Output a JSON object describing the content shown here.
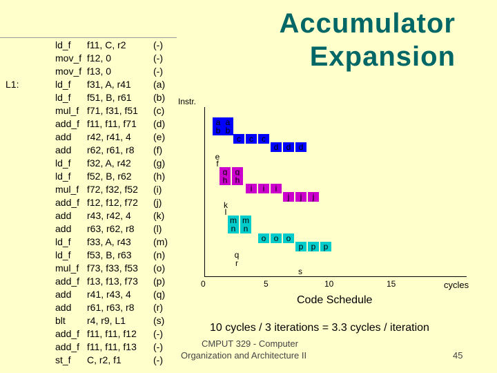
{
  "title": [
    "Accumulator",
    "Expansion"
  ],
  "loop_label": "L1:",
  "code": [
    {
      "op": "ld_f",
      "args": "f11, C, r2",
      "tag": "(-)"
    },
    {
      "op": "mov_f",
      "args": "f12, 0",
      "tag": "(-)"
    },
    {
      "op": "mov_f",
      "args": "f13, 0",
      "tag": "(-)"
    },
    {
      "op": "ld_f",
      "args": "f31, A, r41",
      "tag": "(a)"
    },
    {
      "op": "ld_f",
      "args": "f51, B, r61",
      "tag": "(b)"
    },
    {
      "op": "mul_f",
      "args": "f71, f31, f51",
      "tag": "(c)"
    },
    {
      "op": "add_f",
      "args": "f11, f11, f71",
      "tag": "(d)"
    },
    {
      "op": "add",
      "args": "r42, r41, 4",
      "tag": "(e)"
    },
    {
      "op": "add",
      "args": "r62, r61, r8",
      "tag": "(f)"
    },
    {
      "op": "ld_f",
      "args": "f32, A, r42",
      "tag": "(g)"
    },
    {
      "op": "ld_f",
      "args": "f52, B, r62",
      "tag": "(h)"
    },
    {
      "op": "mul_f",
      "args": "f72, f32, f52",
      "tag": "(i)"
    },
    {
      "op": "add_f",
      "args": "f12, f12, f72",
      "tag": "(j)"
    },
    {
      "op": "add",
      "args": "r43, r42, 4",
      "tag": "(k)"
    },
    {
      "op": "add",
      "args": "r63, r62, r8",
      "tag": "(l)"
    },
    {
      "op": "ld_f",
      "args": "f33, A, r43",
      "tag": "(m)"
    },
    {
      "op": "ld_f",
      "args": "f53, B, r63",
      "tag": "(n)"
    },
    {
      "op": "mul_f",
      "args": "f73, f33, f53",
      "tag": "(o)"
    },
    {
      "op": "add_f",
      "args": "f13, f13, f73",
      "tag": "(p)"
    },
    {
      "op": "add",
      "args": "r41, r43, 4",
      "tag": "(q)"
    },
    {
      "op": "add",
      "args": "r61, r63, r8",
      "tag": "(r)"
    },
    {
      "op": "blt",
      "args": "r4, r9, L1",
      "tag": "(s)"
    },
    {
      "op": "add_f",
      "args": "f11, f11, f12",
      "tag": "(-)"
    },
    {
      "op": "add_f",
      "args": "f11, f11, f13",
      "tag": "(-)"
    },
    {
      "op": "st_f",
      "args": "C, r2, f1",
      "tag": "(-)"
    }
  ],
  "schedule": {
    "y_label": "Instr.",
    "x_label": "cycles",
    "ticks": [
      "0",
      "5",
      "10",
      "15"
    ],
    "title": "Code Schedule",
    "colors": {
      "blue": "#0000ff",
      "magenta": "#cc00cc",
      "teal": "#00cccc",
      "white": "#ffffff",
      "axis": "#000000"
    },
    "cells": [
      {
        "t": "a",
        "c": "blue"
      },
      {
        "t": "a",
        "c": "blue"
      },
      {
        "t": "b",
        "c": "blue"
      },
      {
        "t": "b",
        "c": "blue"
      },
      {
        "t": "c",
        "c": "blue"
      },
      {
        "t": "c",
        "c": "blue"
      },
      {
        "t": "c",
        "c": "blue"
      },
      {
        "t": "d",
        "c": "blue"
      },
      {
        "t": "d",
        "c": "blue"
      },
      {
        "t": "d",
        "c": "blue"
      },
      {
        "t": "e",
        "c": "white"
      },
      {
        "t": "f",
        "c": "white"
      },
      {
        "t": "g",
        "c": "magenta"
      },
      {
        "t": "g",
        "c": "magenta"
      },
      {
        "t": "h",
        "c": "magenta"
      },
      {
        "t": "h",
        "c": "magenta"
      },
      {
        "t": "i",
        "c": "magenta"
      },
      {
        "t": "i",
        "c": "magenta"
      },
      {
        "t": "i",
        "c": "magenta"
      },
      {
        "t": "j",
        "c": "magenta"
      },
      {
        "t": "j",
        "c": "magenta"
      },
      {
        "t": "j",
        "c": "magenta"
      },
      {
        "t": "k",
        "c": "white"
      },
      {
        "t": "l",
        "c": "white"
      },
      {
        "t": "m",
        "c": "teal"
      },
      {
        "t": "m",
        "c": "teal"
      },
      {
        "t": "n",
        "c": "teal"
      },
      {
        "t": "n",
        "c": "teal"
      },
      {
        "t": "o",
        "c": "teal"
      },
      {
        "t": "o",
        "c": "teal"
      },
      {
        "t": "o",
        "c": "teal"
      },
      {
        "t": "p",
        "c": "teal"
      },
      {
        "t": "p",
        "c": "teal"
      },
      {
        "t": "p",
        "c": "teal"
      },
      {
        "t": "q",
        "c": "white"
      },
      {
        "t": "r",
        "c": "white"
      },
      {
        "t": "s",
        "c": "white"
      }
    ]
  },
  "summary": "10 cycles / 3 iterations = 3.3 cycles / iteration",
  "footer": {
    "course": "CMPUT 329 - Computer",
    "course2": "Organization and Architecture II",
    "page": "45"
  }
}
